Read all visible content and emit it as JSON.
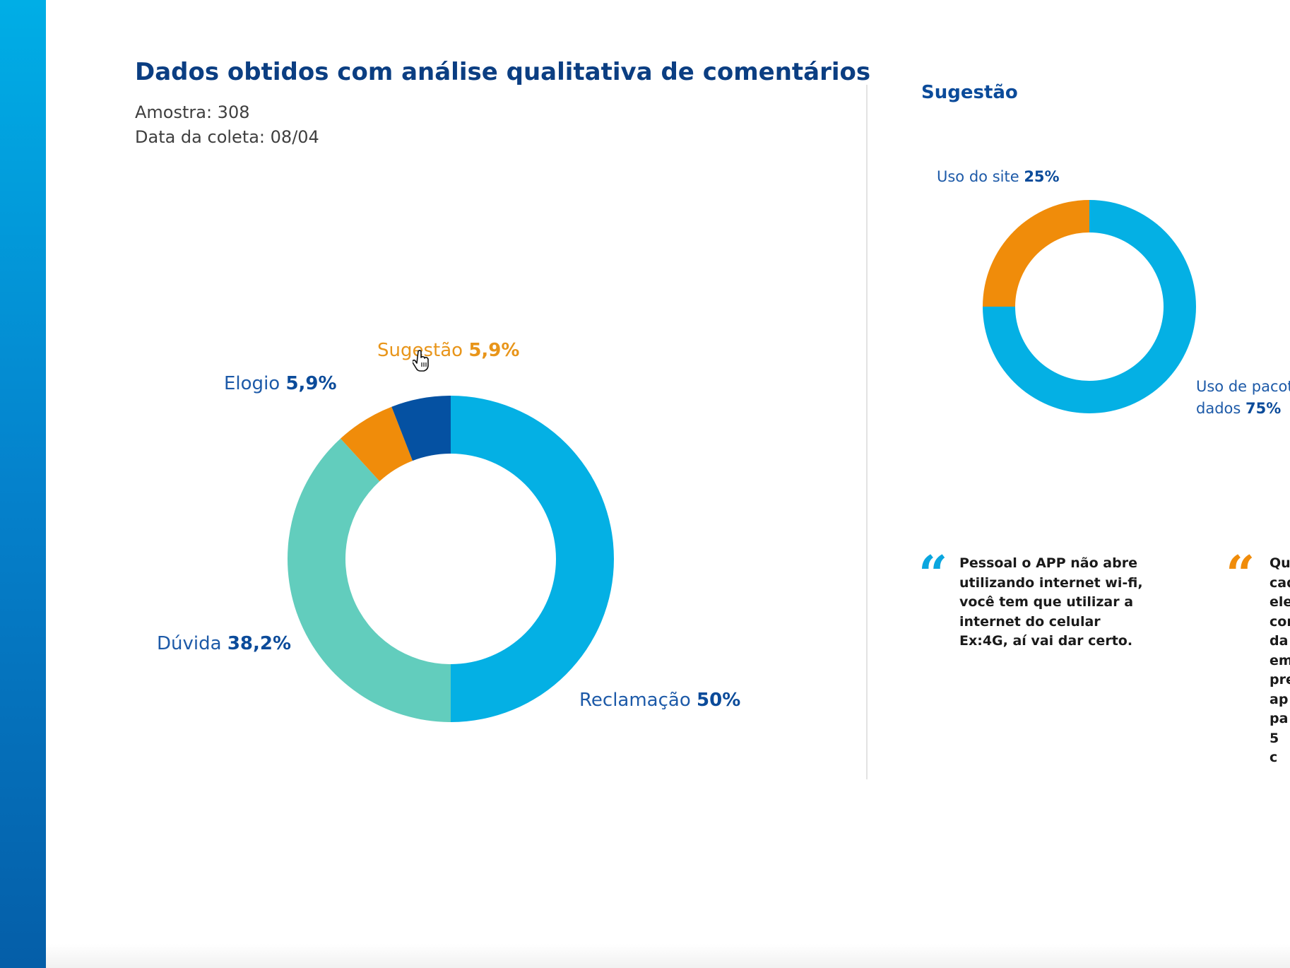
{
  "header": {
    "title": "Dados obtidos com análise qualitativa de comentários",
    "sample": "Amostra: 308",
    "date": "Data da coleta: 08/04"
  },
  "main_chart": {
    "labels": [
      {
        "name": "Reclamação",
        "value": "50%"
      },
      {
        "name": "Dúvida",
        "value": "38,2%"
      },
      {
        "name": "Sugestão",
        "value": "5,9%"
      },
      {
        "name": "Elogio",
        "value": "5,9%"
      }
    ]
  },
  "side_chart": {
    "title": "Sugestão",
    "labels": [
      {
        "name": "Uso do site",
        "value": "25%"
      },
      {
        "name_line1": "Uso de pacote",
        "name_line2": "dados",
        "value": "75%"
      }
    ]
  },
  "quotes": [
    {
      "lines": [
        "Pessoal o APP não abre",
        "utilizando internet wi-fi,",
        "você tem que utilizar a",
        "internet do celular",
        "Ex:4G, aí vai dar certo."
      ]
    },
    {
      "lines": [
        "Qu",
        "cad",
        "ele",
        "con",
        "da",
        "em",
        "pre",
        "ap",
        "pa",
        "5 c"
      ]
    }
  ],
  "chart_data": [
    {
      "type": "pie",
      "categories": [
        "Reclamação",
        "Dúvida",
        "Sugestão",
        "Elogio"
      ],
      "values": [
        50,
        38.2,
        5.9,
        5.9
      ],
      "colors": [
        "#04b0e4",
        "#62cdbd",
        "#f08c0a",
        "#0551a2"
      ],
      "donut": true
    },
    {
      "type": "pie",
      "title": "Sugestão",
      "categories": [
        "Uso de pacote dados",
        "Uso do site"
      ],
      "values": [
        75,
        25
      ],
      "colors": [
        "#04b0e4",
        "#f08c0a"
      ],
      "donut": true
    }
  ],
  "colors": {
    "brand_dark": "#0b3e82",
    "brand_blue": "#0b4b9a",
    "label_blue": "#1d5aa8",
    "accent_orange": "#e8951a",
    "quote_blue": "#0aa6df",
    "quote_orange": "#f08c0a"
  }
}
